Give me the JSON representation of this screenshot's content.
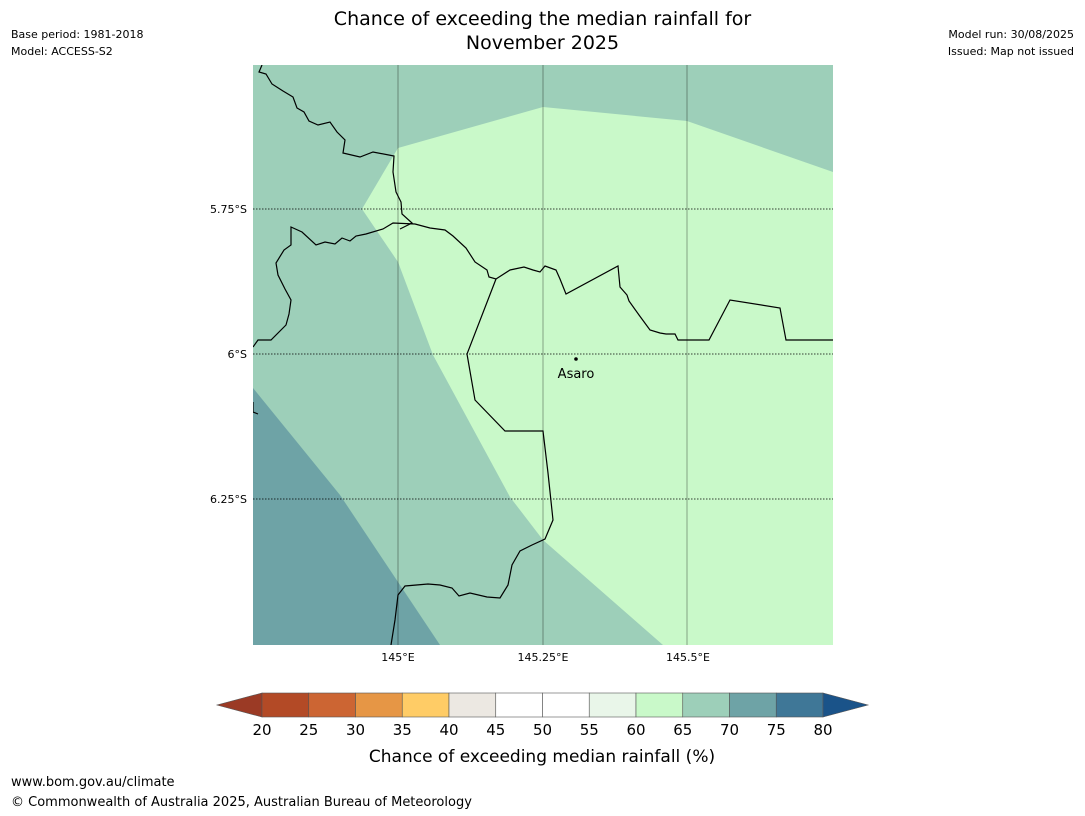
{
  "header": {
    "title_line1": "Chance of exceeding the median rainfall for",
    "title_line2": "November 2025",
    "base_period": "Base period: 1981-2018",
    "model": "Model: ACCESS-S2",
    "model_run": "Model run: 30/08/2025",
    "issued": "Issued: Map not issued"
  },
  "map": {
    "lat_ticks": [
      "5.75°S",
      "6°S",
      "6.25°S"
    ],
    "lon_ticks": [
      "145°E",
      "145.25°E",
      "145.5°E"
    ],
    "place": {
      "name": "Asaro",
      "lon": 145.31,
      "lat": -6.01
    },
    "extent": {
      "lon_min": 144.75,
      "lon_max": 145.75,
      "lat_min": -6.5,
      "lat_max": -5.5
    },
    "zones": [
      {
        "name": "60-65",
        "color": "#c9f9c9"
      },
      {
        "name": "65-70",
        "color": "#9dcfb9"
      },
      {
        "name": "70-75",
        "color": "#6ea3a6"
      }
    ]
  },
  "colorbar": {
    "ticks": [
      "20",
      "25",
      "30",
      "35",
      "40",
      "45",
      "50",
      "55",
      "60",
      "65",
      "70",
      "75",
      "80"
    ],
    "colors": [
      "#9b3a25",
      "#b34a26",
      "#cc6533",
      "#e69645",
      "#ffcc66",
      "#ece8e2",
      "#ffffff",
      "#ffffff",
      "#e9f6e9",
      "#c9f9c9",
      "#9dcfb9",
      "#6ea3a6",
      "#3f7797",
      "#1a5389"
    ],
    "label": "Chance of exceeding median rainfall (%)"
  },
  "footer": {
    "url": "www.bom.gov.au/climate",
    "copyright": "© Commonwealth of Australia 2025, Australian Bureau of Meteorology"
  }
}
